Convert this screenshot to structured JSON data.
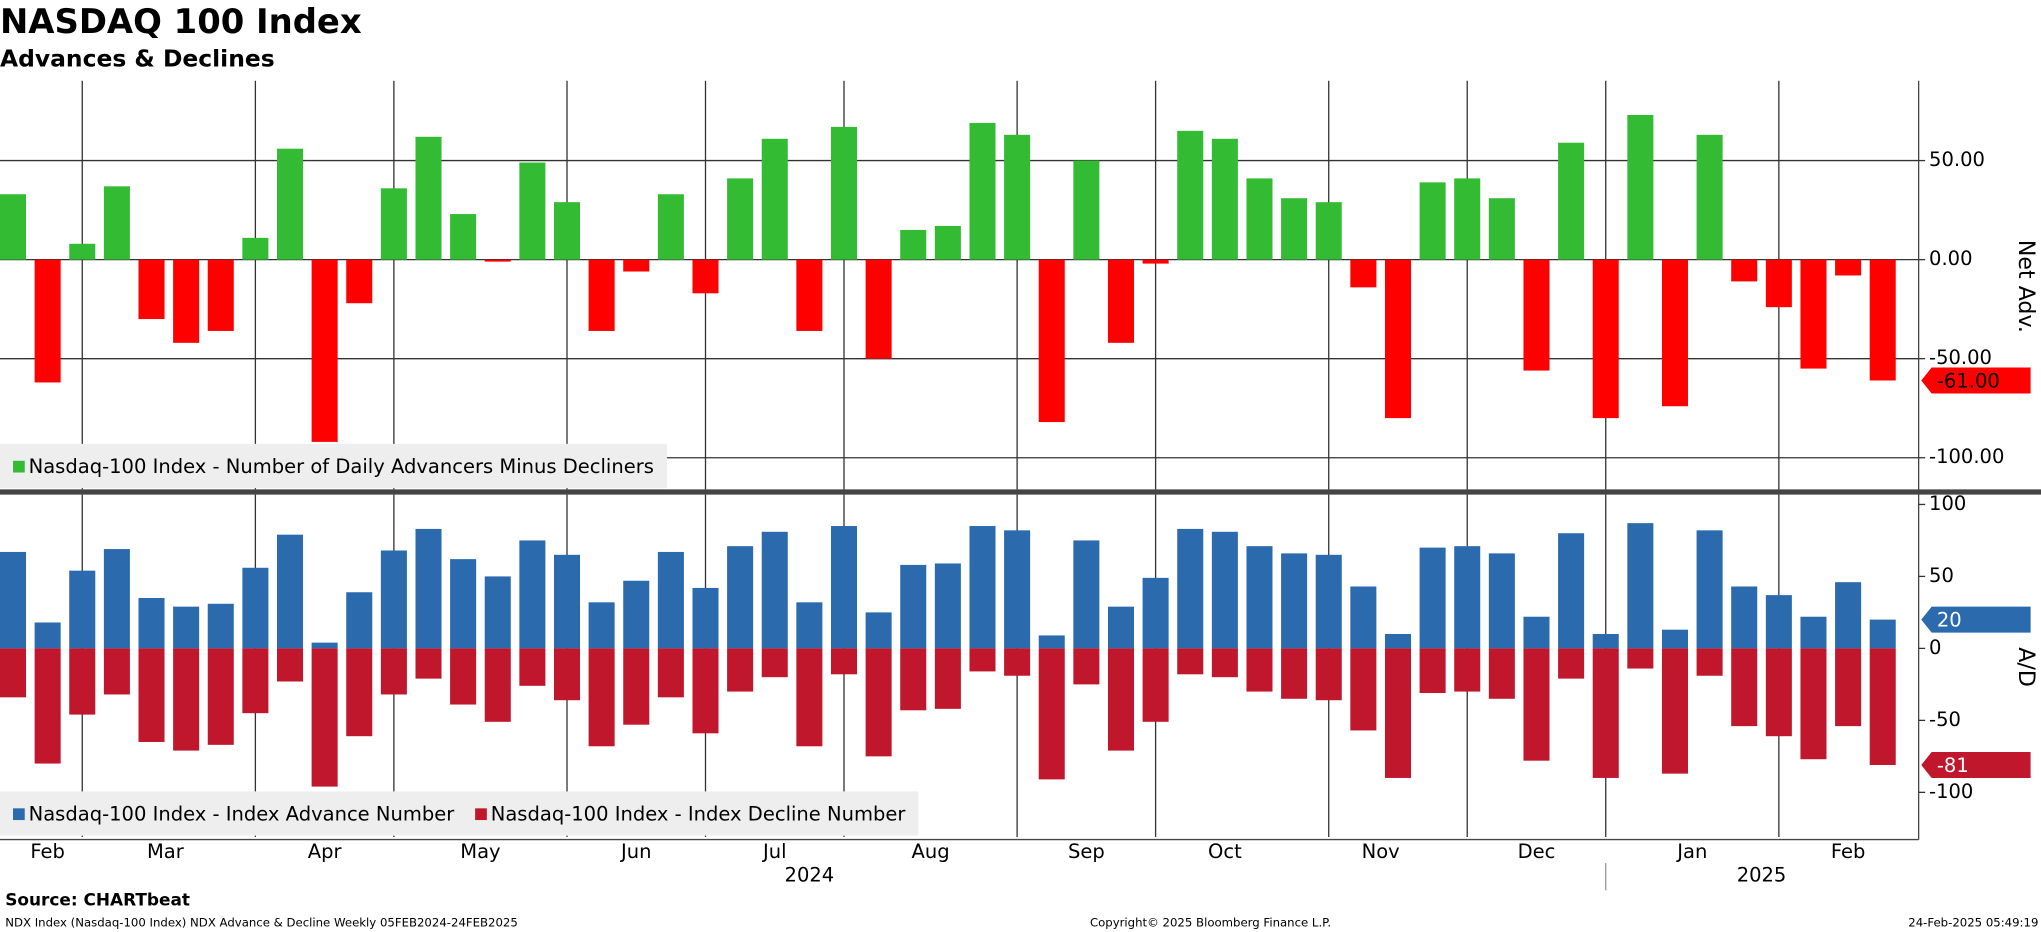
{
  "title": "NASDAQ 100 Index",
  "subtitle": "Advances & Declines",
  "source": "Source: CHARTbeat",
  "footer": {
    "left": "NDX Index (Nasdaq-100 Index) NDX Advance & Decline  Weekly 05FEB2024-24FEB2025",
    "center": "Copyright© 2025 Bloomberg Finance L.P.",
    "right": "24-Feb-2025 05:49:19"
  },
  "x_axis": {
    "ticks": [
      {
        "value": 1,
        "label": "Feb"
      },
      {
        "value": 4.4,
        "label": "Mar"
      },
      {
        "value": 9,
        "label": "Apr"
      },
      {
        "value": 13.5,
        "label": "May"
      },
      {
        "value": 18,
        "label": "Jun"
      },
      {
        "value": 22,
        "label": "Jul"
      },
      {
        "value": 26.5,
        "label": "Aug"
      },
      {
        "value": 31,
        "label": "Sep"
      },
      {
        "value": 35,
        "label": "Oct"
      },
      {
        "value": 39.5,
        "label": "Nov"
      },
      {
        "value": 44,
        "label": "Dec"
      },
      {
        "value": 48.5,
        "label": "Jan"
      },
      {
        "value": 53,
        "label": "Feb"
      }
    ],
    "years": [
      {
        "value": 23,
        "label": "2024"
      },
      {
        "value": 50.5,
        "label": "2025"
      }
    ],
    "grid": [
      2,
      7,
      11,
      16,
      20,
      24,
      29,
      33,
      38,
      42,
      46,
      51
    ],
    "year_break": 46
  },
  "chart_data": [
    {
      "type": "bar",
      "ylabel": "Net Adv.",
      "ylim": [
        -116,
        89
      ],
      "grid": true,
      "yticks": [
        {
          "value": 50,
          "label": "50.00"
        },
        {
          "value": 0,
          "label": "0.00"
        },
        {
          "value": -50,
          "label": "-50.00"
        },
        {
          "value": -100,
          "label": "-100.00"
        }
      ],
      "series": [
        {
          "name": "Nasdaq-100 Index - Number of Daily Advancers Minus Decliners",
          "color": "#33bb33",
          "negative_color": "#ff0000",
          "last_label": "-61.00",
          "values": [
            33,
            -62,
            8,
            37,
            -30,
            -42,
            -36,
            11,
            56,
            -92,
            -22,
            36,
            62,
            23,
            -1,
            49,
            29,
            -36,
            -6,
            33,
            -17,
            41,
            61,
            -36,
            67,
            -50,
            15,
            17,
            69,
            63,
            -82,
            50,
            -42,
            -2,
            65,
            61,
            41,
            31,
            29,
            -14,
            -80,
            39,
            41,
            31,
            -56,
            59,
            -80,
            73,
            -74,
            63,
            -11,
            -24,
            -55,
            -8,
            -61
          ]
        }
      ]
    },
    {
      "type": "bar",
      "ylabel": "A/D",
      "ylim": [
        -131,
        105
      ],
      "grid": false,
      "yticks": [
        100,
        50,
        0,
        -50,
        -100
      ],
      "series": [
        {
          "name": "Nasdaq-100 Index - Index Advance Number",
          "color": "#2a6aad",
          "last_label": "20",
          "values": [
            67,
            18,
            54,
            69,
            35,
            29,
            31,
            56,
            79,
            4,
            39,
            68,
            83,
            62,
            50,
            75,
            65,
            32,
            47,
            67,
            42,
            71,
            81,
            32,
            85,
            25,
            58,
            59,
            85,
            82,
            9,
            75,
            29,
            49,
            83,
            81,
            71,
            66,
            65,
            43,
            10,
            70,
            71,
            66,
            22,
            80,
            10,
            87,
            13,
            82,
            43,
            37,
            22,
            46,
            20
          ]
        },
        {
          "name": "Nasdaq-100 Index - Index Decline Number",
          "color": "#c0172d",
          "last_label": "-81",
          "values": [
            -34,
            -80,
            -46,
            -32,
            -65,
            -71,
            -67,
            -45,
            -23,
            -96,
            -61,
            -32,
            -21,
            -39,
            -51,
            -26,
            -36,
            -68,
            -53,
            -34,
            -59,
            -30,
            -20,
            -68,
            -18,
            -75,
            -43,
            -42,
            -16,
            -19,
            -91,
            -25,
            -71,
            -51,
            -18,
            -20,
            -30,
            -35,
            -36,
            -57,
            -90,
            -31,
            -30,
            -35,
            -78,
            -21,
            -90,
            -14,
            -87,
            -19,
            -54,
            -61,
            -77,
            -54,
            -81
          ]
        }
      ]
    }
  ]
}
